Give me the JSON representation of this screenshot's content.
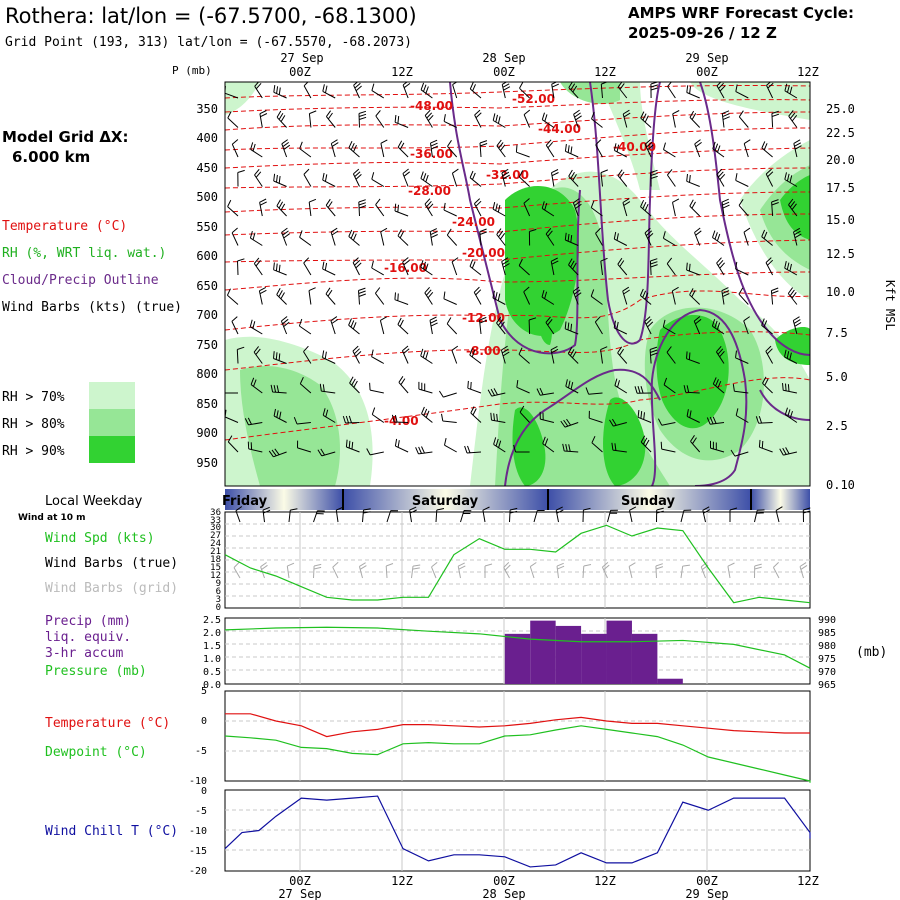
{
  "header": {
    "title": "Rothera:  lat/lon = (-67.5700, -68.1300)",
    "gridpoint": "Grid Point (193, 313) lat/lon = (-67.5570, -68.2073)",
    "cycle_line1": "AMPS WRF Forecast Cycle:",
    "cycle_line2": "2025-09-26 / 12  Z"
  },
  "left_labels": {
    "grid_dx_1": "Model Grid ΔX:",
    "grid_dx_2": "6.000 km",
    "temperature": "Temperature (°C)",
    "rh": "RH (%, WRT liq. wat.)",
    "cloud": "Cloud/Precip Outline",
    "wind": "Wind Barbs (kts) (true)",
    "rh70": "RH > 70%",
    "rh80": "RH > 80%",
    "rh90": "RH > 90%",
    "local_weekday": "Local Weekday",
    "wind10m": "Wind at 10 m",
    "wspd": "Wind Spd (kts)",
    "wbarbs_true": "Wind Barbs (true)",
    "wbarbs_grid": "Wind Barbs (grid)",
    "precip": "Precip (mm)",
    "liq": "liq. equiv.",
    "accum": "3-hr accum",
    "pressure": "Pressure (mb)",
    "temp2": "Temperature (°C)",
    "dewpoint": "Dewpoint (°C)",
    "windchill": "Wind Chill T (°C)",
    "mb_unit": "(mb)"
  },
  "time_axis": {
    "top_dates": [
      "27 Sep",
      "28 Sep",
      "29 Sep"
    ],
    "ticks": [
      "00Z",
      "12Z",
      "00Z",
      "12Z",
      "00Z",
      "12Z"
    ],
    "bottom_dates": [
      "27 Sep",
      "28 Sep",
      "29 Sep"
    ]
  },
  "weekdays": [
    "Friday",
    "Saturday",
    "Sunday"
  ],
  "colors": {
    "temp": "#e01010",
    "rh70": "#cdf5cd",
    "rh80": "#96e696",
    "rh90": "#32d232",
    "cloud": "#6a2a8a",
    "wind_spd": "#20c020",
    "precip": "#6a1f8f",
    "dewpoint": "#20c020",
    "windchill": "#1010a0",
    "weekday_dark": "#3d4fa8",
    "weekday_light": "#fbfbe6"
  },
  "chart_data": [
    {
      "type": "heatmap",
      "name": "sounding",
      "ylabel": "P (mb)",
      "y_right_label": "Kft MSL",
      "pressure_ticks": [
        "350",
        "400",
        "450",
        "500",
        "550",
        "600",
        "650",
        "700",
        "750",
        "800",
        "850",
        "900",
        "950"
      ],
      "height_ticks": [
        "25.0",
        "22.5",
        "20.0",
        "17.5",
        "15.0",
        "12.5",
        "10.0",
        "7.5",
        "5.0",
        "2.5",
        "0.10"
      ],
      "temp_contour_labels": [
        "-52.00",
        "-48.00",
        "-44.00",
        "-40.00",
        "-36.00",
        "-32.00",
        "-28.00",
        "-24.00",
        "-20.00",
        "-16.00",
        "-12.00",
        "-8.00",
        "-4.00"
      ]
    },
    {
      "type": "line",
      "name": "wind_speed",
      "yticks": [
        "36",
        "33",
        "30",
        "27",
        "24",
        "21",
        "18",
        "15",
        "12",
        "9",
        "6",
        "3",
        "0"
      ],
      "hours": [
        0,
        3,
        6,
        9,
        12,
        15,
        18,
        21,
        24,
        27,
        30,
        33,
        36,
        39,
        42,
        45,
        48,
        51,
        54,
        57,
        60,
        63,
        66,
        69
      ],
      "values": [
        20,
        15,
        12,
        8,
        4,
        3,
        3,
        4,
        4,
        20,
        26,
        22,
        22,
        21,
        28,
        31,
        27,
        30,
        29,
        15,
        2,
        4,
        3,
        2
      ]
    },
    {
      "type": "bar",
      "name": "precip_pressure",
      "precip_yticks": [
        "2.5",
        "2.0",
        "1.5",
        "1.0",
        "0.5",
        "0.0"
      ],
      "pressure_yticks": [
        "990",
        "985",
        "980",
        "975",
        "970",
        "965"
      ],
      "precip_hours": [
        33,
        36,
        39,
        42,
        45,
        48,
        51
      ],
      "precip_values": [
        1.9,
        2.4,
        2.2,
        1.9,
        2.4,
        1.9,
        0.2
      ],
      "pressure_hours": [
        0,
        6,
        12,
        18,
        24,
        30,
        36,
        42,
        48,
        54,
        60,
        66,
        72
      ],
      "pressure_values": [
        985.5,
        986.2,
        986.5,
        986.2,
        985.0,
        984.0,
        982.0,
        981.0,
        981.0,
        981.5,
        980.0,
        976.0,
        971.0
      ]
    },
    {
      "type": "line",
      "name": "temp_dewpoint",
      "yticks": [
        "5",
        "0",
        "-5",
        "-10"
      ],
      "hours": [
        0,
        3,
        6,
        9,
        12,
        15,
        18,
        21,
        24,
        27,
        30,
        33,
        36,
        39,
        42,
        45,
        48,
        51,
        54,
        57,
        60,
        63,
        66,
        69,
        72
      ],
      "temperature": [
        1.2,
        1.2,
        0.0,
        -0.8,
        -2.6,
        -1.8,
        -1.4,
        -0.6,
        -0.6,
        -0.8,
        -1.0,
        -0.8,
        -0.4,
        0.2,
        0.6,
        0.0,
        -0.4,
        -0.4,
        -0.8,
        -1.2,
        -1.6,
        -1.8,
        -2.0,
        -2.0,
        -2.0
      ],
      "dewpoint": [
        -2.5,
        -2.8,
        -3.2,
        -4.4,
        -4.6,
        -5.4,
        -5.6,
        -3.8,
        -3.6,
        -3.8,
        -3.8,
        -2.5,
        -2.3,
        -1.5,
        -0.8,
        -1.4,
        -2.0,
        -2.6,
        -4.0,
        -6.0,
        -7.0,
        -8.0,
        -9.0,
        -10.0,
        -10.3
      ]
    },
    {
      "type": "line",
      "name": "wind_chill",
      "yticks": [
        "0",
        "-5",
        "-10",
        "-15",
        "-20"
      ],
      "hours": [
        0,
        2,
        4,
        6,
        9,
        12,
        15,
        18,
        21,
        24,
        27,
        30,
        33,
        36,
        39,
        42,
        45,
        48,
        51,
        54,
        57,
        60,
        63,
        66,
        69,
        72
      ],
      "values": [
        -14.5,
        -10.5,
        -10.0,
        -6.5,
        -2.0,
        -2.5,
        -2.0,
        -1.5,
        -14.5,
        -17.5,
        -16.0,
        -16.0,
        -16.5,
        -19.0,
        -18.5,
        -15.5,
        -18.0,
        -18.0,
        -15.5,
        -3.0,
        -5.0,
        -2.0,
        -2.0,
        -2.0,
        -10.5,
        -12.0
      ]
    }
  ]
}
